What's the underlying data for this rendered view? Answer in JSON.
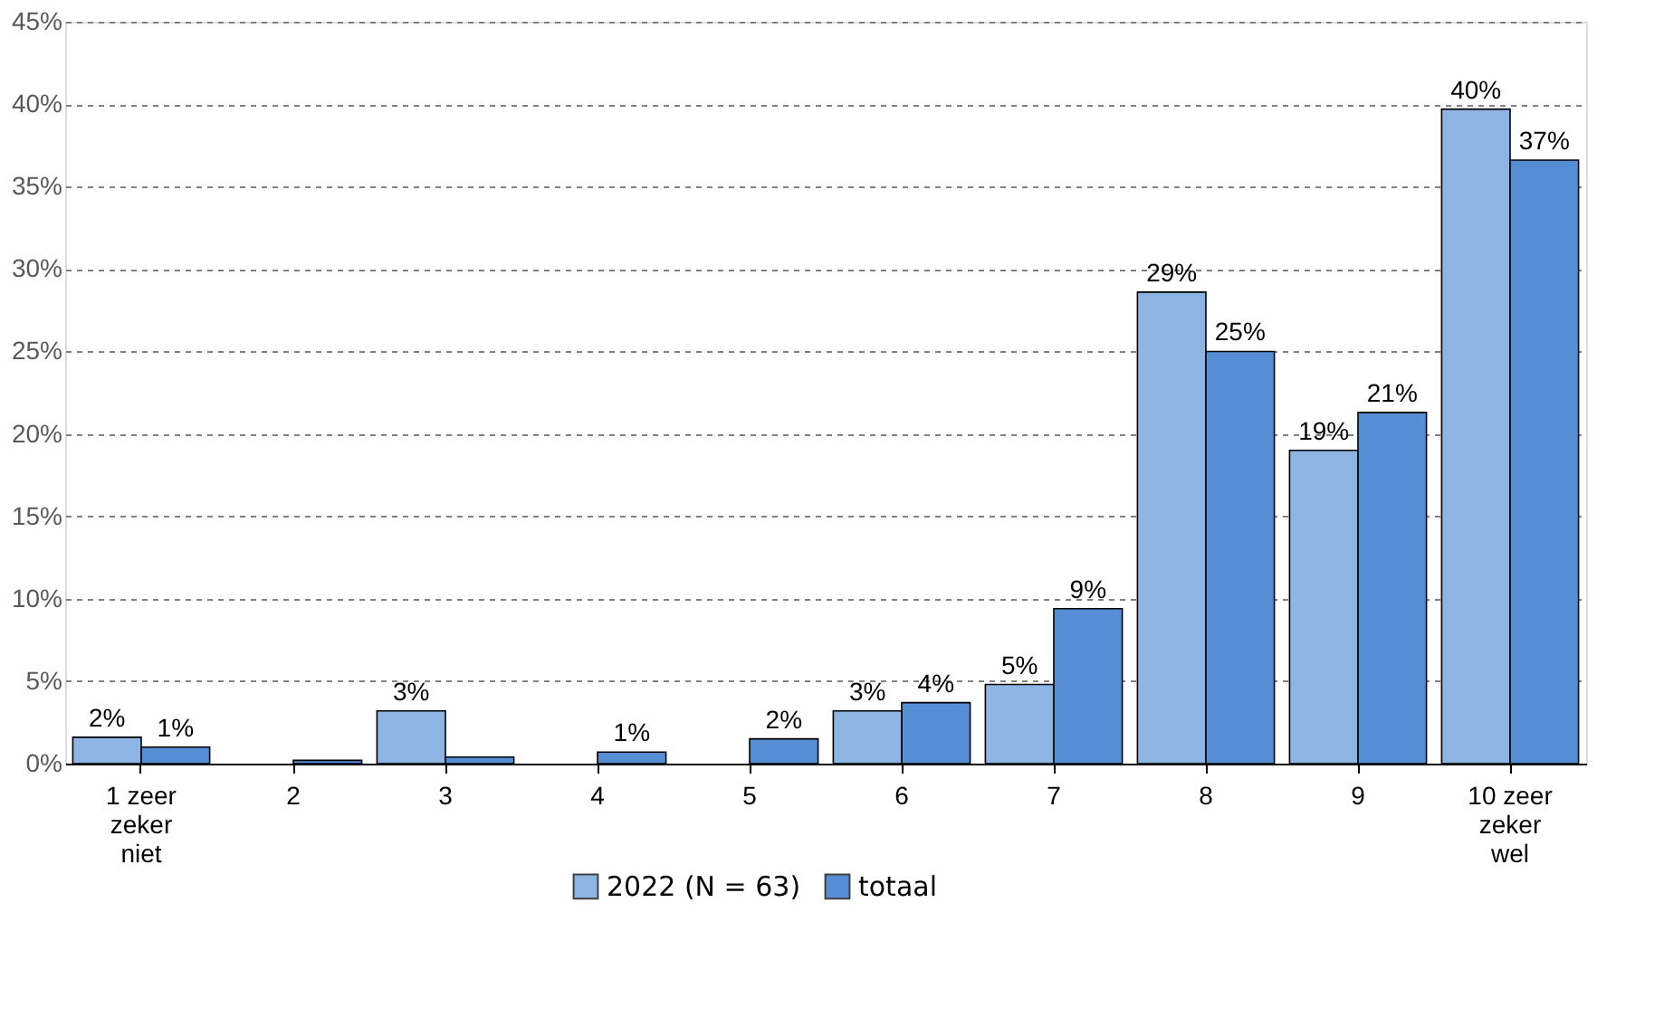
{
  "chart_data": {
    "type": "bar",
    "categories": [
      "1 zeer\nzeker\nniet",
      "2",
      "3",
      "4",
      "5",
      "6",
      "7",
      "8",
      "9",
      "10 zeer\nzeker\nwel"
    ],
    "series": [
      {
        "name": "2022 (N = 63)",
        "color": "#8eb4e3",
        "values": [
          1.6,
          null,
          3.2,
          null,
          null,
          3.2,
          4.8,
          28.6,
          19.0,
          39.7
        ],
        "value_labels": [
          "2%",
          null,
          "3%",
          null,
          null,
          "3%",
          "5%",
          "29%",
          "19%",
          "40%"
        ]
      },
      {
        "name": "totaal",
        "color": "#558ed5",
        "values": [
          1.0,
          0.2,
          0.4,
          0.7,
          1.5,
          3.7,
          9.4,
          25.0,
          21.3,
          36.6
        ],
        "value_labels": [
          "1%",
          null,
          null,
          "1%",
          "2%",
          "4%",
          "9%",
          "25%",
          "21%",
          "37%"
        ]
      }
    ],
    "ylim": [
      0,
      45
    ],
    "yticks": [
      {
        "value": 0,
        "label": "0%"
      },
      {
        "value": 5,
        "label": "5%"
      },
      {
        "value": 10,
        "label": "10%"
      },
      {
        "value": 15,
        "label": "15%"
      },
      {
        "value": 20,
        "label": "20%"
      },
      {
        "value": 25,
        "label": "25%"
      },
      {
        "value": 30,
        "label": "30%"
      },
      {
        "value": 35,
        "label": "35%"
      },
      {
        "value": 40,
        "label": "40%"
      },
      {
        "value": 45,
        "label": "45%"
      }
    ],
    "grid": "y",
    "line_style": "dashed",
    "legend": "bottom"
  }
}
